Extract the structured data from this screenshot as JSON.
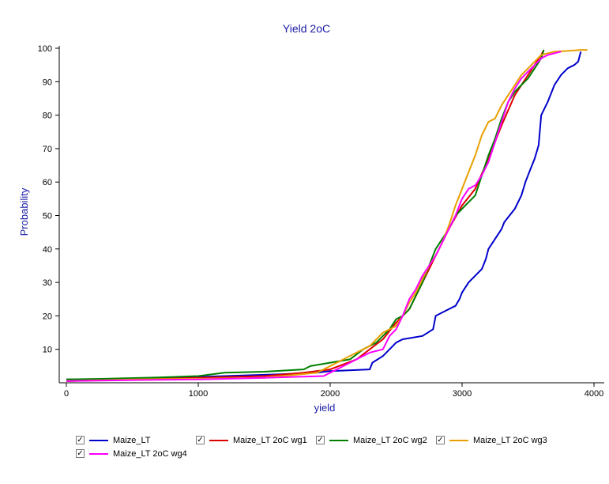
{
  "chart_data": {
    "type": "line",
    "title": "Yield 2oC",
    "xlabel": "yield",
    "ylabel": "Probability",
    "xlim": [
      0,
      4000
    ],
    "ylim": [
      0,
      100
    ],
    "xticks": [
      0,
      1000,
      2000,
      3000,
      4000
    ],
    "yticks": [
      10,
      20,
      30,
      40,
      50,
      60,
      70,
      80,
      90,
      100
    ],
    "grid": false,
    "legend_position": "bottom",
    "series": [
      {
        "name": "Maize_LT",
        "color": "#0000cc",
        "x": [
          0,
          400,
          800,
          1200,
          1600,
          1900,
          2000,
          2300,
          2320,
          2400,
          2450,
          2500,
          2550,
          2700,
          2780,
          2800,
          2900,
          2950,
          2980,
          3000,
          3050,
          3100,
          3150,
          3180,
          3200,
          3250,
          3300,
          3320,
          3400,
          3450,
          3480,
          3500,
          3520,
          3550,
          3580,
          3600,
          3650,
          3700,
          3750,
          3800,
          3850,
          3880,
          3900
        ],
        "y": [
          1,
          1,
          1.5,
          2,
          2.5,
          3,
          3.5,
          4,
          6,
          8,
          10,
          12,
          13,
          14,
          16,
          20,
          22,
          23,
          25,
          27,
          30,
          32,
          34,
          37,
          40,
          43,
          46,
          48,
          52,
          56,
          60,
          62,
          64,
          67,
          71,
          80,
          84,
          89,
          92,
          94,
          95,
          96,
          99
        ]
      },
      {
        "name": "Maize_LT 2oC  wg1",
        "color": "#dd0000",
        "x": [
          0,
          500,
          1000,
          1500,
          1800,
          2000,
          2200,
          2300,
          2400,
          2500,
          2600,
          2700,
          2800,
          2900,
          3000,
          3100,
          3200,
          3300,
          3400,
          3500,
          3600,
          3620
        ],
        "y": [
          0.5,
          1,
          1.5,
          2,
          3,
          4,
          7,
          10,
          13,
          18,
          22,
          30,
          38,
          46,
          53,
          58,
          67,
          77,
          86,
          92,
          98,
          99.5
        ]
      },
      {
        "name": "Maize_LT 2oC  wg2",
        "color": "#008000",
        "x": [
          0,
          300,
          700,
          1000,
          1200,
          1500,
          1800,
          1850,
          2000,
          2150,
          2250,
          2350,
          2450,
          2500,
          2550,
          2600,
          2650,
          2700,
          2800,
          2900,
          2950,
          3000,
          3050,
          3100,
          3150,
          3200,
          3250,
          3300,
          3350,
          3400,
          3450,
          3500,
          3550,
          3600,
          3620
        ],
        "y": [
          1,
          1.2,
          1.6,
          2,
          3,
          3.3,
          4,
          5,
          6,
          7,
          10,
          12,
          16,
          19,
          20,
          22,
          26,
          30,
          40,
          46,
          50,
          52,
          54,
          56,
          62,
          68,
          73,
          79,
          84,
          87,
          89,
          91,
          94,
          97,
          99.5
        ]
      },
      {
        "name": "Maize_LT 2oC  wg3",
        "color": "#e8a000",
        "x": [
          0,
          500,
          1000,
          1500,
          1900,
          2100,
          2200,
          2300,
          2400,
          2500,
          2550,
          2600,
          2650,
          2700,
          2750,
          2800,
          2850,
          2900,
          2950,
          3000,
          3050,
          3100,
          3150,
          3200,
          3250,
          3300,
          3350,
          3400,
          3450,
          3500,
          3550,
          3600,
          3700,
          3800,
          3900,
          3950
        ],
        "y": [
          0.5,
          1,
          1.2,
          1.5,
          3,
          7,
          9,
          11,
          15,
          17,
          20,
          24,
          27,
          31,
          35,
          38,
          42,
          47,
          53,
          58,
          63,
          68,
          74,
          78,
          79,
          83,
          86,
          89,
          92,
          94,
          96,
          98,
          99,
          99.2,
          99.5,
          99.5
        ]
      },
      {
        "name": "Maize_LT 2oC  wg4",
        "color": "#ff00ff",
        "x": [
          0,
          500,
          1000,
          1500,
          1950,
          2000,
          2100,
          2200,
          2300,
          2400,
          2450,
          2500,
          2550,
          2600,
          2650,
          2700,
          2750,
          2800,
          2850,
          2900,
          2950,
          3000,
          3050,
          3100,
          3150,
          3200,
          3250,
          3300,
          3350,
          3400,
          3450,
          3500,
          3550,
          3600,
          3650,
          3750
        ],
        "y": [
          0.5,
          0.8,
          1,
          1.5,
          2,
          3,
          5,
          7,
          9,
          10,
          14,
          16,
          20,
          25,
          28,
          32,
          35,
          38,
          42,
          46,
          50,
          55,
          58,
          59,
          62,
          66,
          72,
          78,
          84,
          88,
          91,
          93,
          95,
          97,
          98,
          99
        ]
      }
    ]
  },
  "legend": {
    "check_mark": "✓",
    "items": [
      "Maize_LT",
      "Maize_LT 2oC  wg1",
      "Maize_LT 2oC  wg2",
      "Maize_LT 2oC  wg3",
      "Maize_LT 2oC  wg4"
    ]
  }
}
